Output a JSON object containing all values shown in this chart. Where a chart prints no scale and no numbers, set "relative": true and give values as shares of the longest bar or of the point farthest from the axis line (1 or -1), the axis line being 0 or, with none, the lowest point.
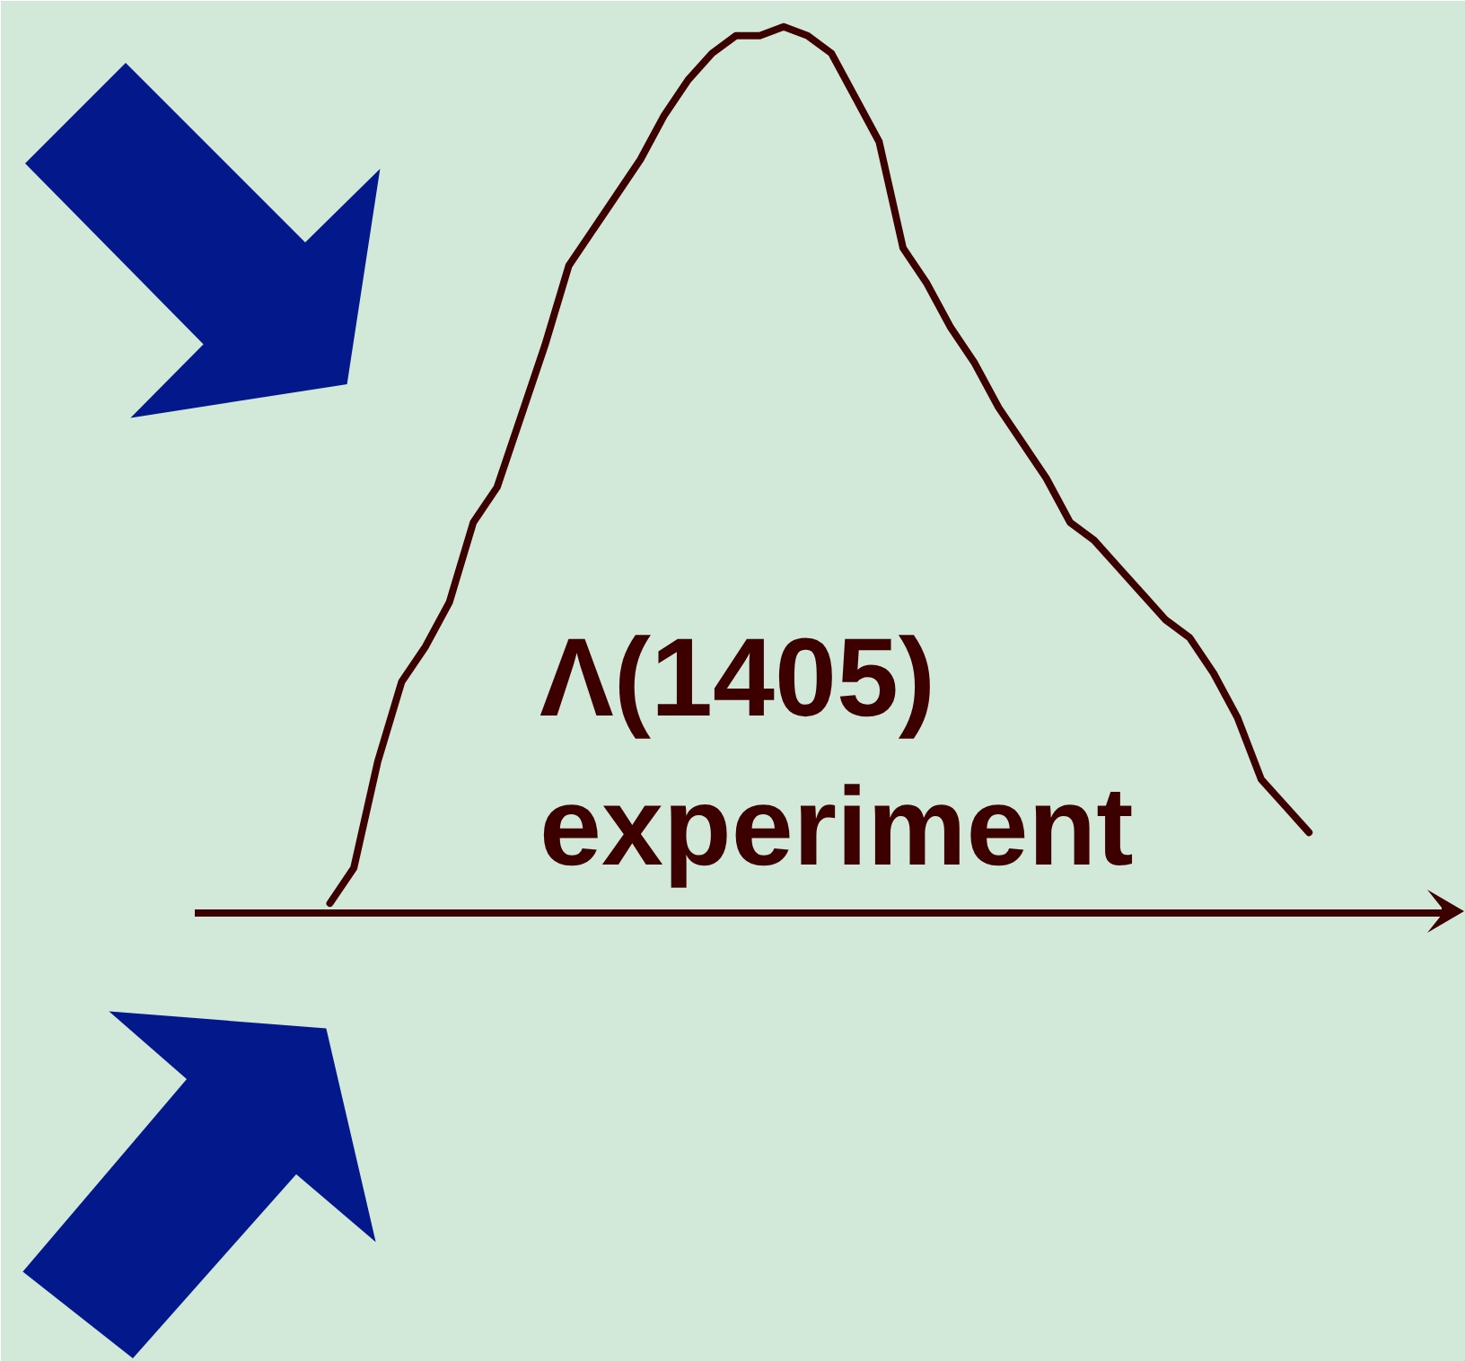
{
  "chart_data": {
    "type": "line",
    "relative": true,
    "categories": [
      null,
      null,
      null,
      null,
      null,
      null,
      null,
      null,
      null,
      null,
      null,
      null,
      null,
      null,
      null,
      null,
      null,
      null,
      null,
      null,
      null,
      null,
      null,
      null,
      null,
      null,
      null,
      null,
      null,
      null,
      null,
      null,
      null,
      null,
      null,
      null,
      null,
      null,
      null,
      null,
      null,
      null
    ],
    "series": [
      {
        "color": "#3d0000",
        "values": [
          0.01,
          0.05,
          0.17,
          0.26,
          0.3,
          0.35,
          0.44,
          0.48,
          0.56,
          0.64,
          0.73,
          0.77,
          0.81,
          0.85,
          0.9,
          0.94,
          0.97,
          0.99,
          0.99,
          1.0,
          0.99,
          0.97,
          0.92,
          0.87,
          0.75,
          0.71,
          0.66,
          0.62,
          0.57,
          0.53,
          0.49,
          0.44,
          0.42,
          0.39,
          0.36,
          0.33,
          0.31,
          0.27,
          0.22,
          0.15,
          0.12,
          0.09
        ]
      }
    ],
    "annotations": [
      "Λ(1405)\nexperiment"
    ]
  }
}
